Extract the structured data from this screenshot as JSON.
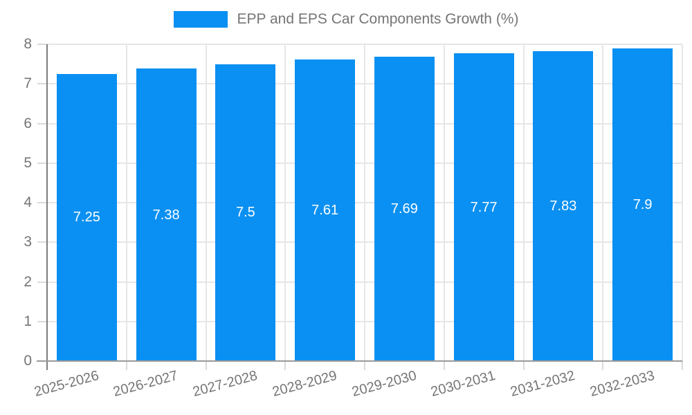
{
  "chart_data": {
    "type": "bar",
    "title": "EPP and EPS Car Components Growth (%)",
    "categories": [
      "2025-2026",
      "2026-2027",
      "2027-2028",
      "2028-2029",
      "2029-2030",
      "2030-2031",
      "2031-2032",
      "2032-2033"
    ],
    "values": [
      7.25,
      7.38,
      7.5,
      7.61,
      7.69,
      7.77,
      7.83,
      7.9
    ],
    "bar_labels": [
      "7.25",
      "7.38",
      "7.5",
      "7.61",
      "7.69",
      "7.77",
      "7.83",
      "7.9"
    ],
    "xlabel": "",
    "ylabel": "",
    "ylim": [
      0,
      8
    ],
    "yticks": [
      0,
      1,
      2,
      3,
      4,
      5,
      6,
      7,
      8
    ],
    "grid": "on",
    "legend_position": "top",
    "colors": {
      "bar": "#0a90f2",
      "axis_text": "#757575",
      "grid_line": "#e6e6e6",
      "y_axis_line": "#7d7d7d",
      "x_axis_line": "#9a9a9a",
      "tick_mark": "#d9d9d9",
      "value_label": "#ffffff",
      "background": "#ffffff"
    }
  }
}
